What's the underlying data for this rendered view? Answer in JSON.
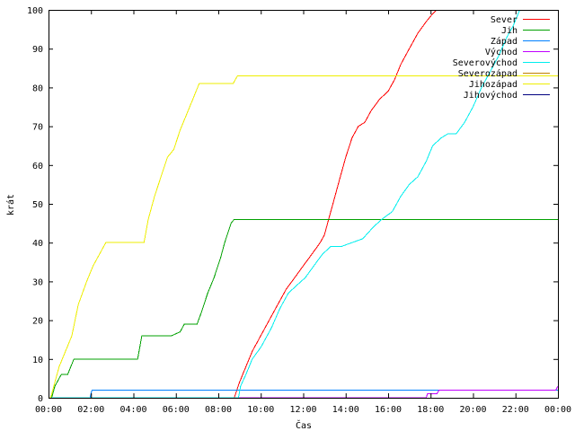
{
  "chart_data": {
    "type": "line",
    "xlabel": "Čas",
    "ylabel": "krát",
    "xlim": [
      0,
      24
    ],
    "ylim": [
      0,
      100
    ],
    "x_unit": "hours",
    "x_ticks": [
      {
        "x": 0,
        "label": "00:00"
      },
      {
        "x": 2,
        "label": "02:00"
      },
      {
        "x": 4,
        "label": "04:00"
      },
      {
        "x": 6,
        "label": "06:00"
      },
      {
        "x": 8,
        "label": "08:00"
      },
      {
        "x": 10,
        "label": "10:00"
      },
      {
        "x": 12,
        "label": "12:00"
      },
      {
        "x": 14,
        "label": "14:00"
      },
      {
        "x": 16,
        "label": "16:00"
      },
      {
        "x": 18,
        "label": "18:00"
      },
      {
        "x": 20,
        "label": "20:00"
      },
      {
        "x": 22,
        "label": "22:00"
      },
      {
        "x": 24,
        "label": "00:00"
      }
    ],
    "y_ticks": [
      {
        "y": 0,
        "label": "0"
      },
      {
        "y": 10,
        "label": "10"
      },
      {
        "y": 20,
        "label": "20"
      },
      {
        "y": 30,
        "label": "30"
      },
      {
        "y": 40,
        "label": "40"
      },
      {
        "y": 50,
        "label": "50"
      },
      {
        "y": 60,
        "label": "60"
      },
      {
        "y": 70,
        "label": "70"
      },
      {
        "y": 80,
        "label": "80"
      },
      {
        "y": 90,
        "label": "90"
      },
      {
        "y": 100,
        "label": "100"
      }
    ],
    "grid": false,
    "legend_position": "top-right",
    "series": [
      {
        "name": "Sever",
        "color": "#ff0000",
        "points": [
          [
            8.75,
            0
          ],
          [
            9.0,
            4
          ],
          [
            9.3,
            8
          ],
          [
            9.6,
            12
          ],
          [
            9.9,
            15
          ],
          [
            10.3,
            19
          ],
          [
            10.8,
            24
          ],
          [
            11.2,
            28
          ],
          [
            11.6,
            31
          ],
          [
            12.0,
            34
          ],
          [
            12.4,
            37
          ],
          [
            12.8,
            40
          ],
          [
            13.0,
            42
          ],
          [
            13.2,
            46
          ],
          [
            13.5,
            52
          ],
          [
            13.8,
            58
          ],
          [
            14.0,
            62
          ],
          [
            14.3,
            67
          ],
          [
            14.6,
            70
          ],
          [
            14.9,
            71
          ],
          [
            15.2,
            74
          ],
          [
            15.6,
            77
          ],
          [
            16.0,
            79
          ],
          [
            16.3,
            82
          ],
          [
            16.6,
            86
          ],
          [
            17.0,
            90
          ],
          [
            17.4,
            94
          ],
          [
            17.8,
            97
          ],
          [
            18.1,
            99
          ],
          [
            18.3,
            100
          ]
        ]
      },
      {
        "name": "Jih",
        "color": "#00a000",
        "points": [
          [
            0,
            0
          ],
          [
            0.15,
            0
          ],
          [
            0.3,
            3
          ],
          [
            0.6,
            6
          ],
          [
            0.9,
            6
          ],
          [
            1.2,
            10
          ],
          [
            4.2,
            10
          ],
          [
            4.4,
            16
          ],
          [
            5.8,
            16
          ],
          [
            6.2,
            17
          ],
          [
            6.4,
            19
          ],
          [
            7.0,
            19
          ],
          [
            7.2,
            22
          ],
          [
            7.5,
            27
          ],
          [
            7.8,
            31
          ],
          [
            8.1,
            36
          ],
          [
            8.3,
            40
          ],
          [
            8.6,
            45
          ],
          [
            8.75,
            46
          ],
          [
            24,
            46
          ]
        ]
      },
      {
        "name": "Západ",
        "color": "#0080ff",
        "points": [
          [
            0,
            0
          ],
          [
            1.95,
            0
          ],
          [
            2.05,
            2
          ],
          [
            24,
            2
          ]
        ]
      },
      {
        "name": "Východ",
        "color": "#c000ff",
        "points": [
          [
            0,
            0
          ],
          [
            17.8,
            0
          ],
          [
            17.85,
            1
          ],
          [
            18.3,
            1
          ],
          [
            18.4,
            2
          ],
          [
            23.9,
            2
          ],
          [
            24,
            3
          ]
        ]
      },
      {
        "name": "Severovýchod",
        "color": "#00eeee",
        "points": [
          [
            0,
            0
          ],
          [
            8.95,
            0
          ],
          [
            9.05,
            3
          ],
          [
            9.3,
            6
          ],
          [
            9.6,
            10
          ],
          [
            10.0,
            13
          ],
          [
            10.5,
            18
          ],
          [
            10.9,
            23
          ],
          [
            11.3,
            27
          ],
          [
            11.7,
            29
          ],
          [
            12.1,
            31
          ],
          [
            12.5,
            34
          ],
          [
            12.9,
            37
          ],
          [
            13.3,
            39
          ],
          [
            13.8,
            39
          ],
          [
            14.3,
            40
          ],
          [
            14.8,
            41
          ],
          [
            15.3,
            44
          ],
          [
            15.7,
            46
          ],
          [
            16.2,
            48
          ],
          [
            16.6,
            52
          ],
          [
            17.0,
            55
          ],
          [
            17.4,
            57
          ],
          [
            17.8,
            61
          ],
          [
            18.1,
            65
          ],
          [
            18.5,
            67
          ],
          [
            18.8,
            68
          ],
          [
            19.2,
            68
          ],
          [
            19.6,
            71
          ],
          [
            20.0,
            75
          ],
          [
            20.4,
            80
          ],
          [
            20.8,
            84
          ],
          [
            21.2,
            88
          ],
          [
            21.6,
            93
          ],
          [
            21.9,
            96
          ],
          [
            22.2,
            100
          ]
        ]
      },
      {
        "name": "Severozápad",
        "color": "#c08000",
        "points": []
      },
      {
        "name": "Jihozápad",
        "color": "#eeee00",
        "points": [
          [
            0,
            0
          ],
          [
            0.1,
            0
          ],
          [
            0.3,
            4
          ],
          [
            0.5,
            8
          ],
          [
            0.8,
            12
          ],
          [
            1.1,
            16
          ],
          [
            1.4,
            24
          ],
          [
            1.8,
            30
          ],
          [
            2.1,
            34
          ],
          [
            2.5,
            38
          ],
          [
            2.7,
            40
          ],
          [
            4.5,
            40
          ],
          [
            4.7,
            46
          ],
          [
            5.0,
            52
          ],
          [
            5.3,
            57
          ],
          [
            5.6,
            62
          ],
          [
            5.9,
            64
          ],
          [
            6.2,
            69
          ],
          [
            6.5,
            73
          ],
          [
            6.8,
            77
          ],
          [
            7.1,
            81
          ],
          [
            8.7,
            81
          ],
          [
            8.9,
            83
          ],
          [
            24,
            83
          ]
        ]
      },
      {
        "name": "Jihovýchod",
        "color": "#000080",
        "points": []
      }
    ]
  }
}
